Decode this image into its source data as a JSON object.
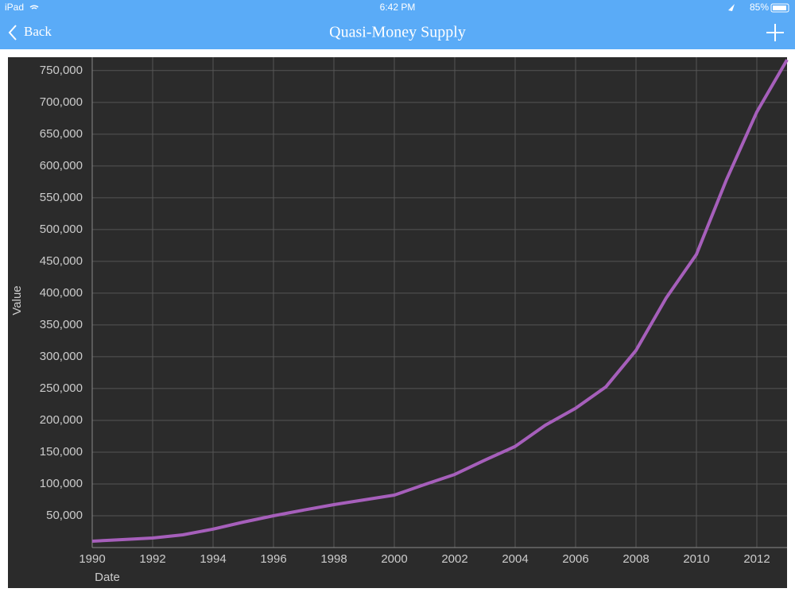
{
  "status_bar": {
    "device": "iPad",
    "time": "6:42 PM",
    "battery": "85%"
  },
  "nav": {
    "back": "Back",
    "title": "Quasi-Money Supply"
  },
  "chart_data": {
    "type": "line",
    "x_label": "Date",
    "y_label": "Value",
    "x": [
      1990,
      1991,
      1992,
      1993,
      1994,
      1995,
      1996,
      1997,
      1998,
      1999,
      2000,
      2001,
      2002,
      2003,
      2004,
      2005,
      2006,
      2007,
      2008,
      2009,
      2010,
      2011,
      2012,
      2013
    ],
    "values": [
      10000,
      12500,
      15000,
      20000,
      29000,
      40000,
      50000,
      59000,
      67500,
      75000,
      82500,
      99000,
      115000,
      137500,
      159000,
      192500,
      219000,
      252500,
      310000,
      392500,
      461000,
      579000,
      685000,
      767000
    ],
    "color": "#a65fbb",
    "xlim": [
      1990,
      2013
    ],
    "xticks": [
      1990,
      1992,
      1994,
      1996,
      1998,
      2000,
      2002,
      2004,
      2006,
      2008,
      2010,
      2012
    ],
    "ylim": [
      0,
      771000
    ],
    "yticks": [
      {
        "value": 50000,
        "label": "50,000"
      },
      {
        "value": 100000,
        "label": "100,000"
      },
      {
        "value": 150000,
        "label": "150,000"
      },
      {
        "value": 200000,
        "label": "200,000"
      },
      {
        "value": 250000,
        "label": "250,000"
      },
      {
        "value": 300000,
        "label": "300,000"
      },
      {
        "value": 350000,
        "label": "350,000"
      },
      {
        "value": 400000,
        "label": "400,000"
      },
      {
        "value": 450000,
        "label": "450,000"
      },
      {
        "value": 500000,
        "label": "500,000"
      },
      {
        "value": 550000,
        "label": "550,000"
      },
      {
        "value": 600000,
        "label": "600,000"
      },
      {
        "value": 650000,
        "label": "650,000"
      },
      {
        "value": 700000,
        "label": "700,000"
      },
      {
        "value": 750000,
        "label": "750,000"
      }
    ],
    "grid": true
  }
}
